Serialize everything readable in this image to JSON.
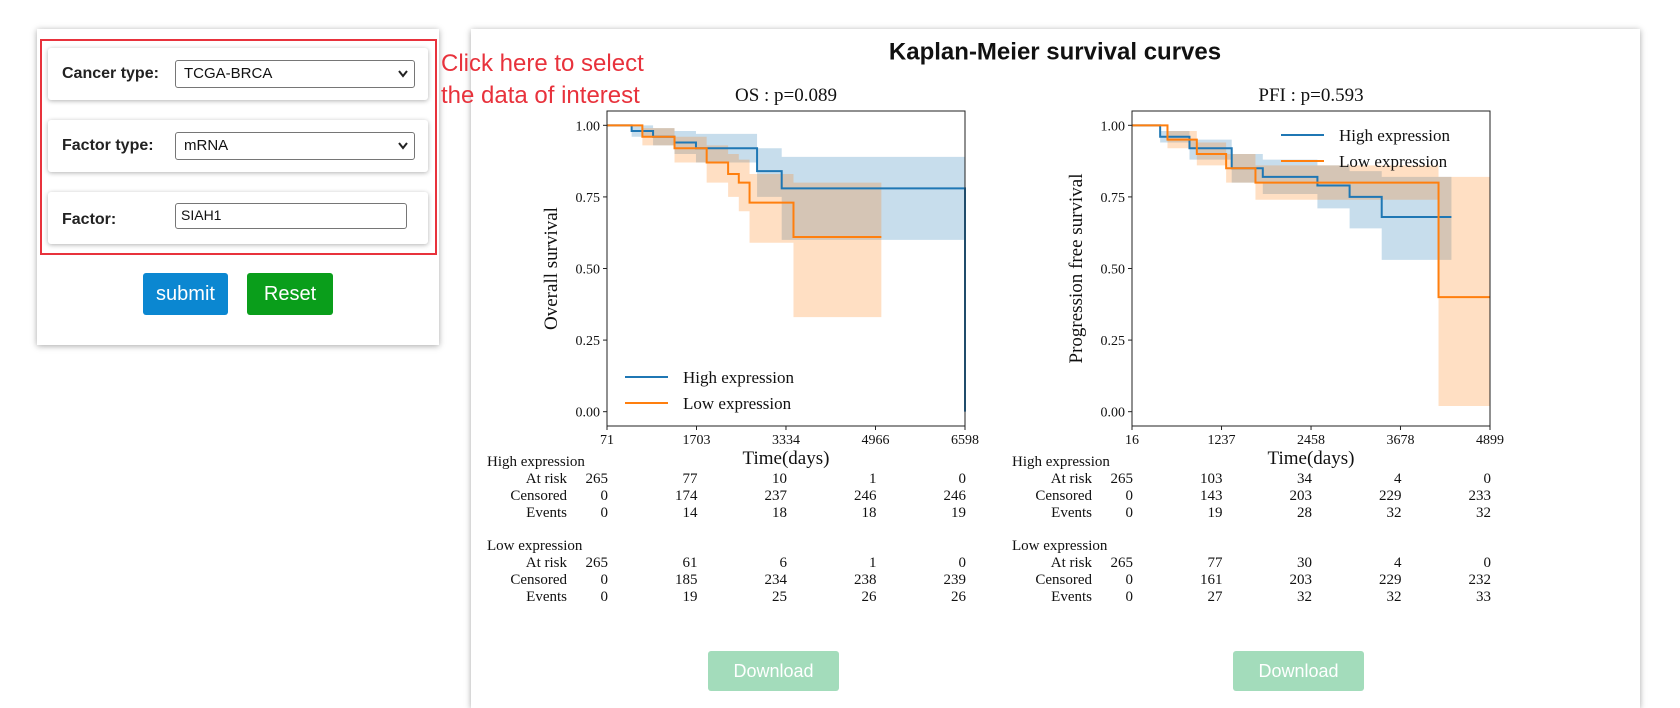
{
  "form": {
    "fields": [
      {
        "label": "Cancer type:",
        "value": "TCGA-BRCA"
      },
      {
        "label": "Factor type:",
        "value": "mRNA"
      },
      {
        "label": "Factor:",
        "value": "SIAH1"
      }
    ],
    "buttons": [
      "submit",
      "Reset"
    ],
    "annotation": [
      "Click here to select",
      "the data of interest"
    ]
  },
  "panel_title": "Kaplan-Meier survival curves",
  "chart_data": [
    {
      "type": "line",
      "title": "OS : p=0.089",
      "x_label": "Time(days)",
      "y_label": "Overall survival",
      "xlim": [
        71,
        6598
      ],
      "xticks": [
        71,
        1703,
        3334,
        4966,
        6598
      ],
      "ylim": [
        -0.05,
        1.05
      ],
      "yticks": [
        {
          "value": 0,
          "label": "0.00"
        },
        {
          "value": 0.25,
          "label": "0.25"
        },
        {
          "value": 0.5,
          "label": "0.50"
        },
        {
          "value": 0.75,
          "label": "0.75"
        },
        {
          "value": 1,
          "label": "1.00"
        }
      ],
      "legend": "lower left",
      "series": [
        {
          "name": "High expression",
          "color": "#1f77b4",
          "x": [
            71,
            520,
            520,
            911,
            911,
            1302,
            1302,
            1693,
            1693,
            2807,
            2807,
            3256,
            3256,
            6598,
            6598
          ],
          "values": [
            1,
            1,
            0.98,
            0.98,
            0.96,
            0.96,
            0.94,
            0.94,
            0.92,
            0.92,
            0.84,
            0.84,
            0.78,
            0.78,
            0
          ],
          "ci_lower": [
            1,
            1,
            0.96,
            0.96,
            0.93,
            0.93,
            0.9,
            0.9,
            0.87,
            0.87,
            0.75,
            0.75,
            0.6,
            0.6,
            0.6
          ],
          "ci_upper": [
            1,
            1,
            1,
            1,
            0.99,
            0.99,
            0.98,
            0.98,
            0.97,
            0.97,
            0.92,
            0.92,
            0.89,
            0.89,
            0.89
          ]
        },
        {
          "name": "Low expression",
          "color": "#ff7f0e",
          "x": [
            71,
            716,
            716,
            1302,
            1302,
            1888,
            1888,
            2279,
            2279,
            2474,
            2474,
            2670,
            2670,
            3471,
            3471,
            5073
          ],
          "values": [
            1,
            1,
            0.96,
            0.96,
            0.92,
            0.92,
            0.87,
            0.87,
            0.83,
            0.83,
            0.8,
            0.8,
            0.73,
            0.73,
            0.61,
            0.61
          ],
          "ci_lower": [
            1,
            1,
            0.93,
            0.93,
            0.87,
            0.87,
            0.8,
            0.8,
            0.75,
            0.75,
            0.7,
            0.7,
            0.59,
            0.59,
            0.33,
            0.33
          ],
          "ci_upper": [
            1,
            1,
            0.99,
            0.99,
            0.96,
            0.96,
            0.93,
            0.93,
            0.9,
            0.9,
            0.88,
            0.88,
            0.83,
            0.83,
            0.8,
            0.8
          ]
        }
      ],
      "risk_table": {
        "row_labels": [
          "At risk",
          "Censored",
          "Events"
        ],
        "groups": [
          [
            [
              265,
              77,
              10,
              1,
              0
            ],
            [
              0,
              174,
              237,
              246,
              246
            ],
            [
              0,
              14,
              18,
              18,
              19
            ]
          ],
          [
            [
              265,
              61,
              6,
              1,
              0
            ],
            [
              0,
              185,
              234,
              238,
              239
            ],
            [
              0,
              19,
              25,
              26,
              26
            ]
          ]
        ]
      },
      "button": "Download"
    },
    {
      "type": "line",
      "title": "PFI : p=0.593",
      "x_label": "Time(days)",
      "y_label": "Progression free survival",
      "xlim": [
        16,
        4899
      ],
      "xticks": [
        16,
        1237,
        2458,
        3678,
        4899
      ],
      "ylim": [
        -0.05,
        1.05
      ],
      "yticks": [
        {
          "value": 0,
          "label": "0.00"
        },
        {
          "value": 0.25,
          "label": "0.25"
        },
        {
          "value": 0.5,
          "label": "0.50"
        },
        {
          "value": 0.75,
          "label": "0.75"
        },
        {
          "value": 1,
          "label": "1.00"
        }
      ],
      "legend": "upper right",
      "series": [
        {
          "name": "High expression",
          "color": "#1f77b4",
          "x": [
            16,
            400,
            400,
            800,
            800,
            1376,
            1376,
            1800,
            1800,
            2545,
            2545,
            2984,
            2984,
            3422,
            3422,
            4373
          ],
          "values": [
            1,
            1,
            0.96,
            0.96,
            0.92,
            0.92,
            0.85,
            0.85,
            0.82,
            0.82,
            0.79,
            0.79,
            0.75,
            0.75,
            0.68,
            0.68
          ],
          "ci_lower": [
            1,
            1,
            0.94,
            0.94,
            0.88,
            0.88,
            0.8,
            0.8,
            0.76,
            0.76,
            0.71,
            0.71,
            0.64,
            0.64,
            0.53,
            0.53
          ],
          "ci_upper": [
            1,
            1,
            0.98,
            0.98,
            0.95,
            0.95,
            0.9,
            0.9,
            0.88,
            0.88,
            0.86,
            0.86,
            0.84,
            0.84,
            0.82,
            0.82
          ]
        },
        {
          "name": "Low expression",
          "color": "#ff7f0e",
          "x": [
            16,
            500,
            500,
            900,
            900,
            1300,
            1300,
            1700,
            1700,
            4197,
            4197,
            4899
          ],
          "values": [
            1,
            1,
            0.95,
            0.95,
            0.9,
            0.9,
            0.85,
            0.85,
            0.8,
            0.8,
            0.4,
            0.4
          ],
          "ci_lower": [
            1,
            1,
            0.92,
            0.92,
            0.86,
            0.86,
            0.8,
            0.8,
            0.74,
            0.74,
            0.02,
            0.02
          ],
          "ci_upper": [
            1,
            1,
            0.98,
            0.98,
            0.94,
            0.94,
            0.9,
            0.9,
            0.86,
            0.86,
            0.82,
            0.82
          ]
        }
      ],
      "risk_table": {
        "row_labels": [
          "At risk",
          "Censored",
          "Events"
        ],
        "groups": [
          [
            [
              265,
              103,
              34,
              4,
              0
            ],
            [
              0,
              143,
              203,
              229,
              233
            ],
            [
              0,
              19,
              28,
              32,
              32
            ]
          ],
          [
            [
              265,
              77,
              30,
              4,
              0
            ],
            [
              0,
              161,
              203,
              229,
              232
            ],
            [
              0,
              27,
              32,
              32,
              33
            ]
          ]
        ]
      },
      "button": "Download"
    }
  ]
}
